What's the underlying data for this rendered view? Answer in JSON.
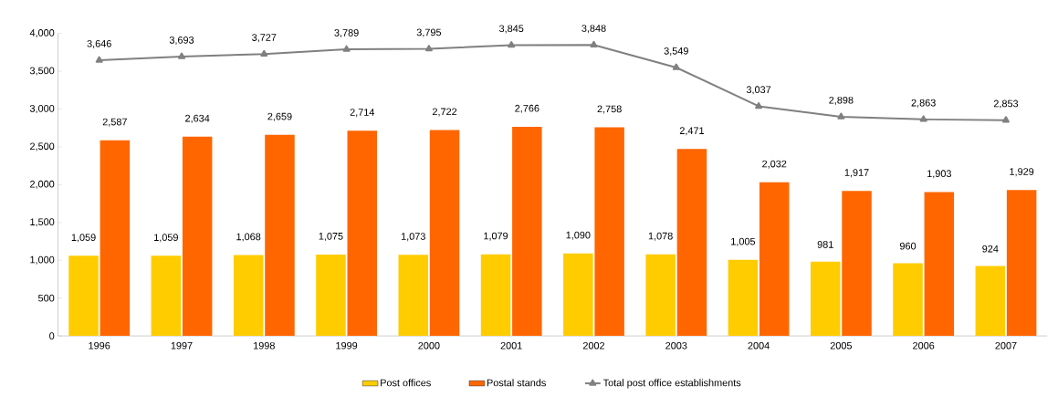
{
  "chart_data": {
    "type": "bar",
    "categories": [
      "1996",
      "1997",
      "1998",
      "1999",
      "2000",
      "2001",
      "2002",
      "2003",
      "2004",
      "2005",
      "2006",
      "2007"
    ],
    "series": [
      {
        "name": "Post offices",
        "color": "#ffcc00",
        "values": [
          1059,
          1059,
          1068,
          1075,
          1073,
          1079,
          1090,
          1078,
          1005,
          981,
          960,
          924
        ],
        "value_labels": [
          "1,059",
          "1,059",
          "1,068",
          "1,075",
          "1,073",
          "1,079",
          "1,090",
          "1,078",
          "1,005",
          "981",
          "960",
          "924"
        ]
      },
      {
        "name": "Postal stands",
        "color": "#ff6600",
        "values": [
          2587,
          2634,
          2659,
          2714,
          2722,
          2766,
          2758,
          2471,
          2032,
          1917,
          1903,
          1929
        ],
        "value_labels": [
          "2,587",
          "2,634",
          "2,659",
          "2,714",
          "2,722",
          "2,766",
          "2,758",
          "2,471",
          "2,032",
          "1,917",
          "1,903",
          "1,929"
        ]
      },
      {
        "name": "Total post office establishments",
        "type": "line",
        "color": "#808080",
        "marker": "triangle",
        "line_style": "solid",
        "values": [
          3646,
          3693,
          3727,
          3789,
          3795,
          3845,
          3848,
          3549,
          3037,
          2898,
          2863,
          2853
        ],
        "value_labels": [
          "3,646",
          "3,693",
          "3,727",
          "3,789",
          "3,795",
          "3,845",
          "3,848",
          "3,549",
          "3,037",
          "2,898",
          "2,863",
          "2,853"
        ]
      }
    ],
    "ylim": [
      0,
      4000
    ],
    "yticks": [
      0,
      500,
      {
        "value": 1000,
        "label": "1,000"
      },
      {
        "value": 1500,
        "label": "1,500"
      },
      {
        "value": 2000,
        "label": "2,000"
      },
      {
        "value": 2500,
        "label": "2,500"
      },
      {
        "value": 3000,
        "label": "3,000"
      },
      {
        "value": 3500,
        "label": "3,500"
      },
      {
        "value": 4000,
        "label": "4,000"
      }
    ],
    "legend": "bottom",
    "grid": false
  }
}
